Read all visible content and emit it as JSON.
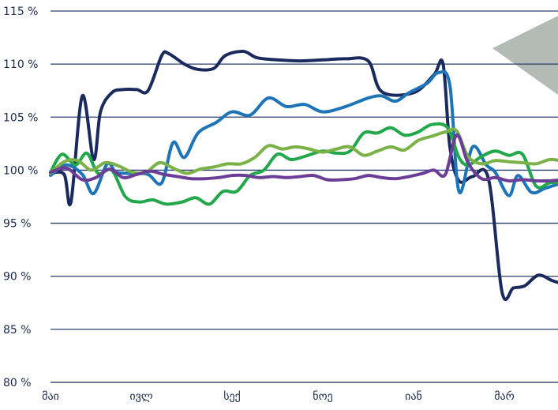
{
  "chart_data": {
    "type": "line",
    "title": "",
    "xlabel": "",
    "ylabel": "",
    "ylim": [
      80,
      115
    ],
    "yticks": [
      80,
      85,
      90,
      95,
      100,
      105,
      110,
      115
    ],
    "ytick_labels": [
      "80 %",
      "85 %",
      "90 %",
      "95 %",
      "100 %",
      "105 %",
      "110 %",
      "115 %"
    ],
    "xlim": [
      0,
      11.7
    ],
    "xticks": [
      0,
      2,
      4,
      6,
      8,
      10
    ],
    "xtick_labels": [
      "მაი",
      "ივლ",
      "სექ",
      "ნოე",
      "იან",
      "მარ"
    ],
    "grid": true,
    "legend": "none",
    "series": [
      {
        "color": "#1b2a5e",
        "x": [
          0,
          0.3,
          0.45,
          0.7,
          0.95,
          1.1,
          1.35,
          1.6,
          1.9,
          2.15,
          2.45,
          2.6,
          2.95,
          3.25,
          3.6,
          3.85,
          4.25,
          4.55,
          5.0,
          5.5,
          6.0,
          6.5,
          7.0,
          7.3,
          8.0,
          8.45,
          8.65,
          8.8,
          9.0,
          9.3,
          9.65,
          9.95,
          10.2,
          10.45,
          10.75,
          11.05,
          11.3,
          11.6
        ],
        "y": [
          99.7,
          99.6,
          97.0,
          107.0,
          101.0,
          105.5,
          107.3,
          107.6,
          107.6,
          107.5,
          110.8,
          111.0,
          110.0,
          109.5,
          109.6,
          110.8,
          111.2,
          110.6,
          110.4,
          110.3,
          110.4,
          110.5,
          110.3,
          107.4,
          107.3,
          109.0,
          110.0,
          102.2,
          99.0,
          99.4,
          99.2,
          88.5,
          88.9,
          89.1,
          90.1,
          89.6,
          89.3,
          89.2
        ]
      },
      {
        "color": "#1f74b8",
        "x": [
          0,
          0.35,
          0.7,
          0.95,
          1.25,
          1.45,
          1.8,
          2.15,
          2.45,
          2.7,
          2.95,
          3.25,
          3.65,
          4.0,
          4.4,
          4.8,
          5.2,
          5.6,
          6.0,
          6.5,
          7.0,
          7.3,
          7.6,
          7.9,
          8.3,
          8.55,
          8.8,
          9.0,
          9.3,
          9.6,
          9.8,
          10.1,
          10.3,
          10.6,
          10.9,
          11.2,
          11.6
        ],
        "y": [
          99.5,
          100.5,
          99.6,
          97.8,
          100.6,
          99.8,
          99.7,
          99.6,
          98.8,
          102.6,
          101.2,
          103.5,
          104.5,
          105.5,
          105.2,
          106.8,
          106.0,
          106.2,
          105.5,
          106.0,
          106.8,
          107.0,
          106.5,
          107.3,
          108.2,
          109.2,
          108.0,
          98.0,
          102.2,
          100.5,
          99.8,
          97.6,
          99.5,
          97.9,
          98.3,
          98.7,
          99.2
        ]
      },
      {
        "color": "#22a84a",
        "x": [
          0,
          0.25,
          0.55,
          0.8,
          1.05,
          1.35,
          1.65,
          1.95,
          2.25,
          2.55,
          2.9,
          3.2,
          3.5,
          3.8,
          4.1,
          4.4,
          4.7,
          5.0,
          5.3,
          5.6,
          6.0,
          6.3,
          6.6,
          6.9,
          7.2,
          7.5,
          7.8,
          8.1,
          8.4,
          8.75,
          9.0,
          9.2,
          9.5,
          9.8,
          10.1,
          10.4,
          10.7,
          11.0,
          11.3,
          11.6
        ],
        "y": [
          99.8,
          101.5,
          100.5,
          101.6,
          99.7,
          100.0,
          97.5,
          97.0,
          97.2,
          96.8,
          97.0,
          97.4,
          96.8,
          98.0,
          98.0,
          99.5,
          100.0,
          101.5,
          101.0,
          101.3,
          101.8,
          101.6,
          101.8,
          103.5,
          103.5,
          104.0,
          103.3,
          103.6,
          104.3,
          104.0,
          101.2,
          100.5,
          101.3,
          101.8,
          101.4,
          101.5,
          98.5,
          98.8,
          98.9,
          99.4
        ]
      },
      {
        "color": "#7ab248",
        "x": [
          0,
          0.3,
          0.6,
          0.9,
          1.2,
          1.5,
          1.8,
          2.1,
          2.4,
          2.7,
          3.0,
          3.3,
          3.6,
          3.9,
          4.2,
          4.5,
          4.8,
          5.1,
          5.4,
          5.7,
          6.0,
          6.3,
          6.6,
          6.9,
          7.2,
          7.5,
          7.8,
          8.1,
          8.4,
          8.7,
          8.95,
          9.2,
          9.5,
          9.8,
          10.1,
          10.4,
          10.7,
          11.0,
          11.3,
          11.6
        ],
        "y": [
          99.7,
          100.8,
          100.9,
          100.0,
          100.7,
          100.4,
          99.8,
          99.8,
          100.7,
          100.2,
          99.7,
          100.1,
          100.3,
          100.6,
          100.6,
          101.2,
          102.3,
          102.0,
          102.2,
          102.0,
          101.7,
          102.0,
          102.2,
          101.4,
          101.8,
          102.2,
          101.9,
          102.8,
          103.2,
          103.6,
          103.7,
          101.3,
          100.6,
          100.9,
          100.8,
          100.7,
          100.6,
          101.0,
          100.9,
          101.2
        ]
      },
      {
        "color": "#6b3d96",
        "x": [
          0,
          0.35,
          0.7,
          1.0,
          1.3,
          1.6,
          1.9,
          2.2,
          2.5,
          2.8,
          3.1,
          3.4,
          3.7,
          4.0,
          4.3,
          4.6,
          4.9,
          5.2,
          5.5,
          5.8,
          6.1,
          6.4,
          6.7,
          7.0,
          7.3,
          7.6,
          7.9,
          8.2,
          8.45,
          8.7,
          8.95,
          9.2,
          9.5,
          9.8,
          10.1,
          10.4,
          10.7,
          11.0,
          11.3,
          11.6
        ],
        "y": [
          99.8,
          100.2,
          99.1,
          99.3,
          100.1,
          99.3,
          99.6,
          99.9,
          99.6,
          99.4,
          99.2,
          99.2,
          99.3,
          99.5,
          99.5,
          99.3,
          99.4,
          99.3,
          99.4,
          99.5,
          99.1,
          99.1,
          99.2,
          99.5,
          99.3,
          99.2,
          99.4,
          99.7,
          100.0,
          99.6,
          103.3,
          100.7,
          99.2,
          99.3,
          99.0,
          99.1,
          99.0,
          99.0,
          99.1,
          99.1
        ]
      }
    ]
  },
  "decor": {
    "triangle_color": "#b2bbb5"
  }
}
